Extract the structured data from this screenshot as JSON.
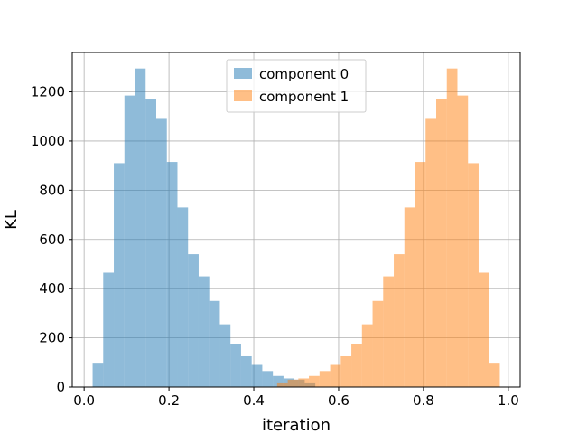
{
  "chart_data": {
    "type": "bar",
    "subtype": "histogram",
    "title": "",
    "xlabel": "iteration",
    "ylabel": "KL",
    "xlim": [
      -0.028,
      1.028
    ],
    "ylim": [
      0,
      1360
    ],
    "xticks": [
      0.0,
      0.2,
      0.4,
      0.6,
      0.8,
      1.0
    ],
    "xtick_labels": [
      "0.0",
      "0.2",
      "0.4",
      "0.6",
      "0.8",
      "1.0"
    ],
    "yticks": [
      0,
      200,
      400,
      600,
      800,
      1000,
      1200
    ],
    "ytick_labels": [
      "0",
      "200",
      "400",
      "600",
      "800",
      "1000",
      "1200"
    ],
    "grid": true,
    "legend_position": "upper center",
    "series": [
      {
        "name": "component 0",
        "color": "#1f77b4",
        "alpha": 0.5,
        "bin_edges": [
          0.02,
          0.045,
          0.07,
          0.095,
          0.12,
          0.145,
          0.17,
          0.195,
          0.22,
          0.245,
          0.27,
          0.295,
          0.32,
          0.345,
          0.37,
          0.395,
          0.42,
          0.445,
          0.47,
          0.495,
          0.52,
          0.545
        ],
        "counts": [
          95,
          465,
          910,
          1185,
          1295,
          1170,
          1090,
          915,
          730,
          540,
          450,
          350,
          255,
          175,
          125,
          90,
          65,
          45,
          35,
          30,
          15
        ]
      },
      {
        "name": "component 1",
        "color": "#ff7f0e",
        "alpha": 0.5,
        "bin_edges": [
          0.455,
          0.48,
          0.505,
          0.53,
          0.555,
          0.58,
          0.605,
          0.63,
          0.655,
          0.68,
          0.705,
          0.73,
          0.755,
          0.78,
          0.805,
          0.83,
          0.855,
          0.88,
          0.905,
          0.93,
          0.955,
          0.98
        ],
        "counts": [
          15,
          30,
          35,
          45,
          65,
          90,
          125,
          175,
          255,
          350,
          450,
          540,
          730,
          915,
          1090,
          1170,
          1295,
          1185,
          910,
          465,
          95
        ]
      }
    ]
  }
}
